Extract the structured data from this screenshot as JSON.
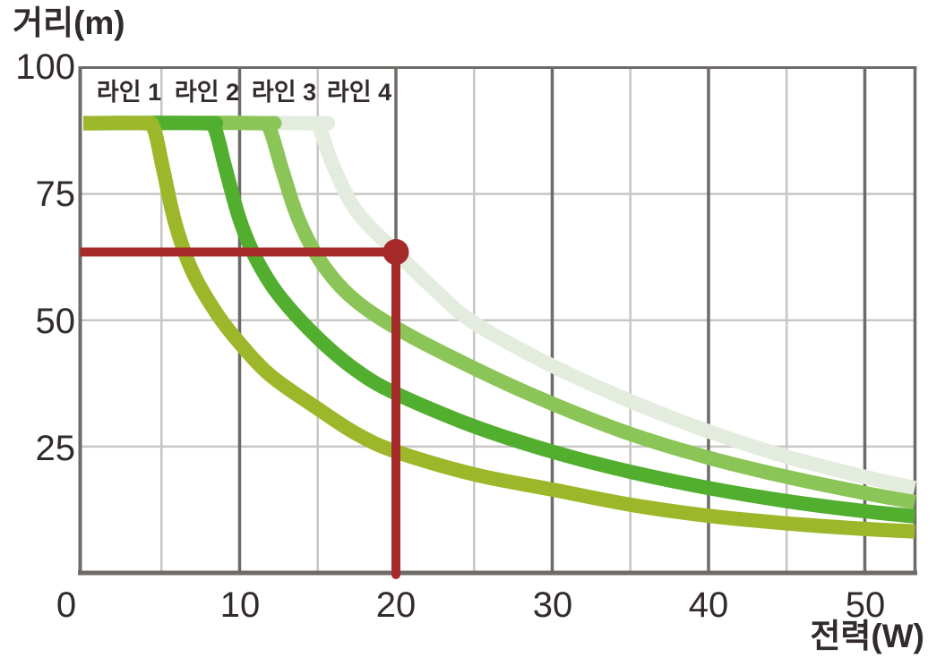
{
  "chart_data": {
    "type": "line",
    "title": "",
    "xlabel": "전력(W)",
    "ylabel": "거리(m)",
    "xlim": [
      0,
      53.2
    ],
    "ylim": [
      0,
      100
    ],
    "grid": "on",
    "x_tick_values": [
      0,
      10,
      20,
      30,
      40,
      50
    ],
    "x_tick_labels": [
      "0",
      "10",
      "20",
      "30",
      "40",
      "50"
    ],
    "y_tick_values": [
      100,
      75,
      50,
      25
    ],
    "y_tick_labels": [
      "100",
      "75",
      "50",
      "25"
    ],
    "x_major_gridlines": [
      10,
      20,
      30,
      40,
      50
    ],
    "x_minor_gridlines": [
      5,
      15,
      25,
      35,
      45
    ],
    "y_gridlines": [
      75,
      50,
      25
    ],
    "colors": {
      "grid_major": "#6e6a67",
      "grid_minor": "#c8c7c5",
      "axis": "#6e6a67",
      "text": "#322b2b",
      "crosshair": "#a52b2b"
    },
    "series": [
      {
        "name": "라인 1",
        "color": "#9db72a",
        "cap_value": 89,
        "points": [
          [
            0,
            89
          ],
          [
            3.8,
            89
          ],
          [
            4.5,
            88
          ],
          [
            5.1,
            80
          ],
          [
            5.9,
            69
          ],
          [
            7,
            59.5
          ],
          [
            8.5,
            51.5
          ],
          [
            10,
            45.5
          ],
          [
            12,
            39
          ],
          [
            15,
            32.5
          ],
          [
            17.5,
            27.5
          ],
          [
            20,
            24
          ],
          [
            25,
            19.5
          ],
          [
            30,
            16.5
          ],
          [
            35,
            13.5
          ],
          [
            40,
            11.3
          ],
          [
            45,
            9.8
          ],
          [
            50,
            8.7
          ],
          [
            53.2,
            8.2
          ]
        ]
      },
      {
        "name": "라인 2",
        "color": "#52ae2f",
        "cap_value": 89,
        "points": [
          [
            0,
            89
          ],
          [
            7.7,
            89
          ],
          [
            8.4,
            88
          ],
          [
            9.1,
            80
          ],
          [
            10,
            70
          ],
          [
            11,
            62.5
          ],
          [
            12.5,
            55
          ],
          [
            15,
            46.5
          ],
          [
            17.5,
            40
          ],
          [
            20,
            35.5
          ],
          [
            25,
            29
          ],
          [
            30,
            24
          ],
          [
            35,
            20
          ],
          [
            40,
            16.8
          ],
          [
            45,
            14.2
          ],
          [
            50,
            12.2
          ],
          [
            53.2,
            11.2
          ]
        ]
      },
      {
        "name": "라인 3",
        "color": "#8bc557",
        "cap_value": 89,
        "points": [
          [
            0,
            89
          ],
          [
            11.2,
            89
          ],
          [
            11.9,
            88
          ],
          [
            12.7,
            80
          ],
          [
            13.7,
            70.5
          ],
          [
            15,
            62.5
          ],
          [
            17,
            55
          ],
          [
            20,
            48.5
          ],
          [
            25,
            40.5
          ],
          [
            30,
            33.5
          ],
          [
            35,
            27.5
          ],
          [
            40,
            22.8
          ],
          [
            45,
            19
          ],
          [
            50,
            15.8
          ],
          [
            53.2,
            14
          ]
        ]
      },
      {
        "name": "라인 4",
        "color": "#e3ecdf",
        "cap_value": 89,
        "points": [
          [
            0,
            89
          ],
          [
            14.4,
            89
          ],
          [
            15.1,
            88
          ],
          [
            16,
            80.5
          ],
          [
            17.5,
            71.5
          ],
          [
            20,
            63.5
          ],
          [
            22.5,
            56
          ],
          [
            25,
            49.5
          ],
          [
            30,
            41
          ],
          [
            35,
            34
          ],
          [
            40,
            28
          ],
          [
            45,
            23
          ],
          [
            50,
            19
          ],
          [
            53.2,
            16.8
          ]
        ]
      }
    ],
    "marker": {
      "x": 20,
      "y": 63.5,
      "on_series": "라인 4",
      "color": "#a52b2b",
      "style": "crosshair-dot",
      "description": "guide lines from axes meeting at a dot on line 4 at power 20 W, distance ~63 m"
    }
  }
}
